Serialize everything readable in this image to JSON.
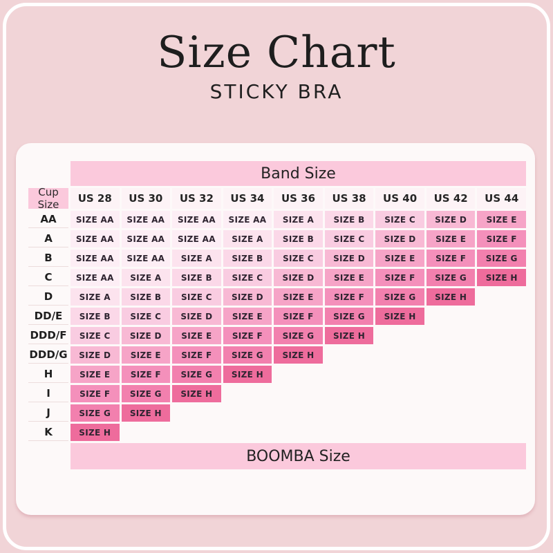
{
  "header": {
    "title": "Size Chart",
    "subtitle": "STICKY BRA"
  },
  "chart_data": {
    "type": "table",
    "title": "Size Chart",
    "subtitle": "STICKY BRA",
    "column_group_header": "Band Size",
    "corner_header": "Cup Size",
    "row_group_footer": "BOOMBA Size",
    "columns": [
      "US 28",
      "US 30",
      "US 32",
      "US 34",
      "US 36",
      "US 38",
      "US 40",
      "US 42",
      "US 44"
    ],
    "rows": [
      {
        "cup_size": "AA",
        "boomba_sizes": [
          "SIZE AA",
          "SIZE AA",
          "SIZE AA",
          "SIZE AA",
          "SIZE A",
          "SIZE B",
          "SIZE C",
          "SIZE D",
          "SIZE E"
        ]
      },
      {
        "cup_size": "A",
        "boomba_sizes": [
          "SIZE AA",
          "SIZE AA",
          "SIZE AA",
          "SIZE A",
          "SIZE B",
          "SIZE C",
          "SIZE D",
          "SIZE E",
          "SIZE F"
        ]
      },
      {
        "cup_size": "B",
        "boomba_sizes": [
          "SIZE AA",
          "SIZE AA",
          "SIZE A",
          "SIZE B",
          "SIZE C",
          "SIZE D",
          "SIZE E",
          "SIZE F",
          "SIZE G"
        ]
      },
      {
        "cup_size": "C",
        "boomba_sizes": [
          "SIZE AA",
          "SIZE A",
          "SIZE B",
          "SIZE C",
          "SIZE D",
          "SIZE E",
          "SIZE F",
          "SIZE G",
          "SIZE H"
        ]
      },
      {
        "cup_size": "D",
        "boomba_sizes": [
          "SIZE A",
          "SIZE B",
          "SIZE C",
          "SIZE D",
          "SIZE E",
          "SIZE F",
          "SIZE G",
          "SIZE H",
          ""
        ]
      },
      {
        "cup_size": "DD/E",
        "boomba_sizes": [
          "SIZE B",
          "SIZE C",
          "SIZE D",
          "SIZE E",
          "SIZE F",
          "SIZE G",
          "SIZE H",
          "",
          ""
        ]
      },
      {
        "cup_size": "DDD/F",
        "boomba_sizes": [
          "SIZE C",
          "SIZE D",
          "SIZE E",
          "SIZE F",
          "SIZE G",
          "SIZE H",
          "",
          "",
          ""
        ]
      },
      {
        "cup_size": "DDD/G",
        "boomba_sizes": [
          "SIZE D",
          "SIZE E",
          "SIZE F",
          "SIZE G",
          "SIZE H",
          "",
          "",
          "",
          ""
        ]
      },
      {
        "cup_size": "H",
        "boomba_sizes": [
          "SIZE E",
          "SIZE F",
          "SIZE G",
          "SIZE H",
          "",
          "",
          "",
          "",
          ""
        ]
      },
      {
        "cup_size": "I",
        "boomba_sizes": [
          "SIZE F",
          "SIZE G",
          "SIZE H",
          "",
          "",
          "",
          "",
          "",
          ""
        ]
      },
      {
        "cup_size": "J",
        "boomba_sizes": [
          "SIZE G",
          "SIZE H",
          "",
          "",
          "",
          "",
          "",
          "",
          ""
        ]
      },
      {
        "cup_size": "K",
        "boomba_sizes": [
          "SIZE H",
          "",
          "",
          "",
          "",
          "",
          "",
          "",
          ""
        ]
      }
    ]
  },
  "colors": {
    "page_bg": "#f1d4d7",
    "frame_ring": "#ffffff",
    "card_bg": "#fdf9f9",
    "band_bg": "#fbc9dc",
    "column_header_bg": "#fdf3f6",
    "row_divider": "#ecdcdc",
    "text": "#232323",
    "size_scale": {
      "SIZE AA": "#fdeef5",
      "SIZE A": "#fce3ee",
      "SIZE B": "#fbd8e8",
      "SIZE C": "#f9cce1",
      "SIZE D": "#f8b9d4",
      "SIZE E": "#f6a4c7",
      "SIZE F": "#f490bb",
      "SIZE G": "#f280ae",
      "SIZE H": "#ee6c9c"
    }
  }
}
